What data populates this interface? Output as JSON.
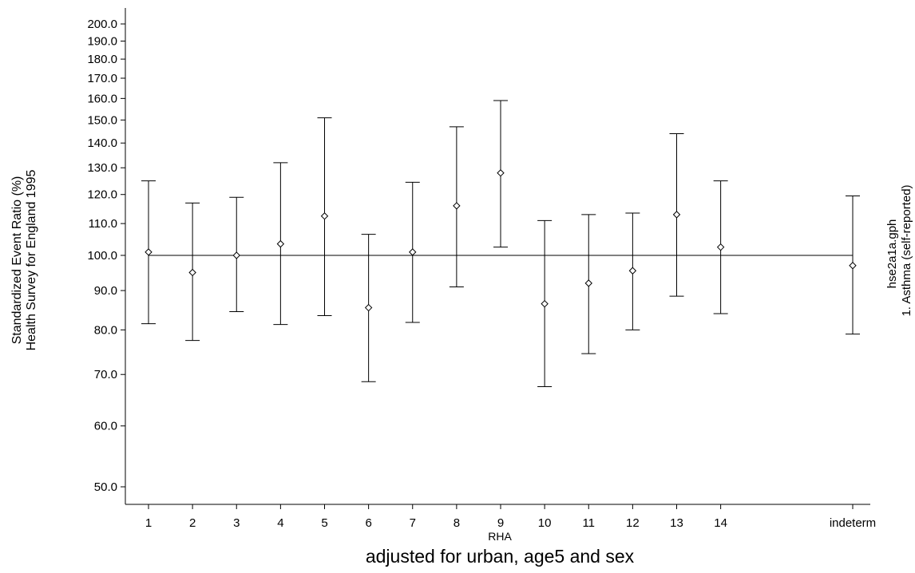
{
  "chart_data": {
    "type": "scatter",
    "subtype": "point-with-error-bars",
    "scale": "log-y",
    "ylabel_line1": "Standardized Event Ratio (%)",
    "ylabel_line2": "Health Survey for England 1995",
    "xlabel": "RHA",
    "subtitle": "adjusted for urban, age5 and sex",
    "side_note_line1": "hse2a1a.gph",
    "side_note_line2": "1.  Asthma (self-reported)",
    "reference_line": 100,
    "ylim": [
      47,
      215
    ],
    "y_ticks": [
      {
        "value": 50,
        "label": "50.0"
      },
      {
        "value": 60,
        "label": "60.0"
      },
      {
        "value": 70,
        "label": "70.0"
      },
      {
        "value": 80,
        "label": "80.0"
      },
      {
        "value": 90,
        "label": "90.0"
      },
      {
        "value": 100,
        "label": "100.0"
      },
      {
        "value": 110,
        "label": "110.0"
      },
      {
        "value": 120,
        "label": "120.0"
      },
      {
        "value": 130,
        "label": "130.0"
      },
      {
        "value": 140,
        "label": "140.0"
      },
      {
        "value": 150,
        "label": "150.0"
      },
      {
        "value": 160,
        "label": "160.0"
      },
      {
        "value": 170,
        "label": "170.0"
      },
      {
        "value": 180,
        "label": "180.0"
      },
      {
        "value": 190,
        "label": "190.0"
      },
      {
        "value": 200,
        "label": "200.0"
      }
    ],
    "x_ticks": [
      {
        "x": 1,
        "label": "1"
      },
      {
        "x": 2,
        "label": "2"
      },
      {
        "x": 3,
        "label": "3"
      },
      {
        "x": 4,
        "label": "4"
      },
      {
        "x": 5,
        "label": "5"
      },
      {
        "x": 6,
        "label": "6"
      },
      {
        "x": 7,
        "label": "7"
      },
      {
        "x": 8,
        "label": "8"
      },
      {
        "x": 9,
        "label": "9"
      },
      {
        "x": 10,
        "label": "10"
      },
      {
        "x": 11,
        "label": "11"
      },
      {
        "x": 12,
        "label": "12"
      },
      {
        "x": 13,
        "label": "13"
      },
      {
        "x": 14,
        "label": "14"
      },
      {
        "x": 17,
        "label": "indeterm"
      }
    ],
    "xlim": [
      0.5,
      17.5
    ],
    "points": [
      {
        "x": 1,
        "value": 101,
        "lower": 81.5,
        "upper": 125
      },
      {
        "x": 2,
        "value": 95,
        "lower": 77.5,
        "upper": 117
      },
      {
        "x": 3,
        "value": 100,
        "lower": 84.5,
        "upper": 119
      },
      {
        "x": 4,
        "value": 103.5,
        "lower": 81.3,
        "upper": 132
      },
      {
        "x": 5,
        "value": 112.5,
        "lower": 83.5,
        "upper": 151
      },
      {
        "x": 6,
        "value": 85.5,
        "lower": 68.5,
        "upper": 106.5
      },
      {
        "x": 7,
        "value": 101,
        "lower": 81.8,
        "upper": 124.5
      },
      {
        "x": 8,
        "value": 116,
        "lower": 91,
        "upper": 147
      },
      {
        "x": 9,
        "value": 128,
        "lower": 102.5,
        "upper": 159
      },
      {
        "x": 10,
        "value": 86.5,
        "lower": 67.5,
        "upper": 111
      },
      {
        "x": 11,
        "value": 92,
        "lower": 74.5,
        "upper": 113
      },
      {
        "x": 12,
        "value": 95.5,
        "lower": 80,
        "upper": 113.5
      },
      {
        "x": 13,
        "value": 113,
        "lower": 88.5,
        "upper": 144
      },
      {
        "x": 14,
        "value": 102.5,
        "lower": 84,
        "upper": 125
      },
      {
        "x": 17,
        "value": 97,
        "lower": 79,
        "upper": 119.5
      }
    ]
  }
}
